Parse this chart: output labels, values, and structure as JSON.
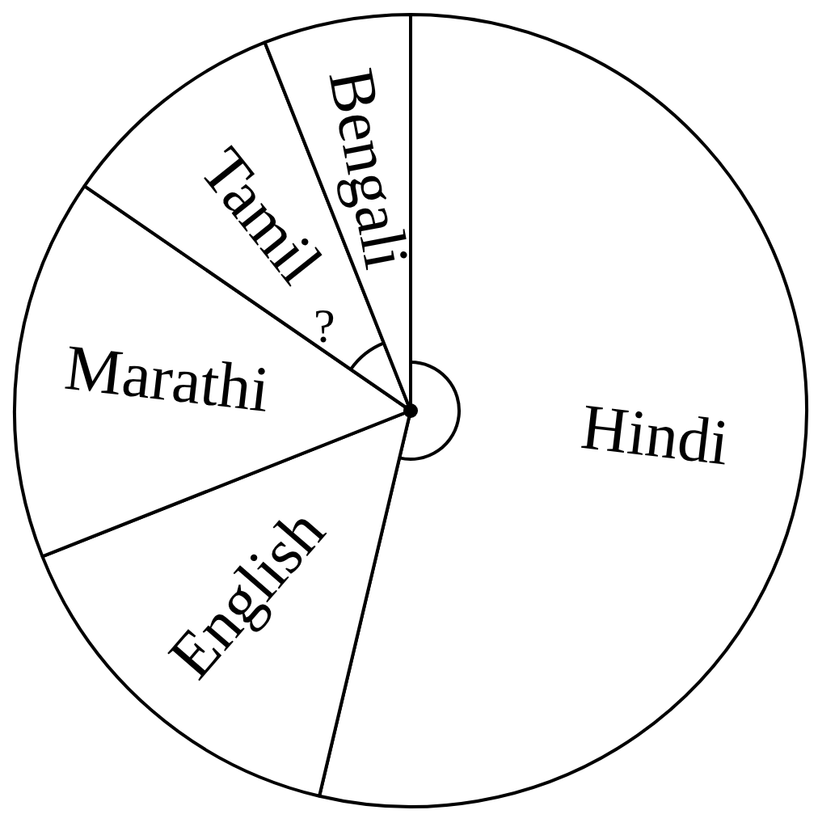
{
  "chart_data": {
    "type": "pie",
    "categories": [
      "Hindi",
      "English",
      "Marathi",
      "Tamil",
      "Bengali"
    ],
    "values": [
      53.7,
      15.3,
      15.6,
      9.4,
      6.0
    ],
    "colors": [
      "#ffffff",
      "#ffffff",
      "#ffffff",
      "#ffffff",
      "#ffffff"
    ],
    "annotations": [
      "?"
    ]
  }
}
